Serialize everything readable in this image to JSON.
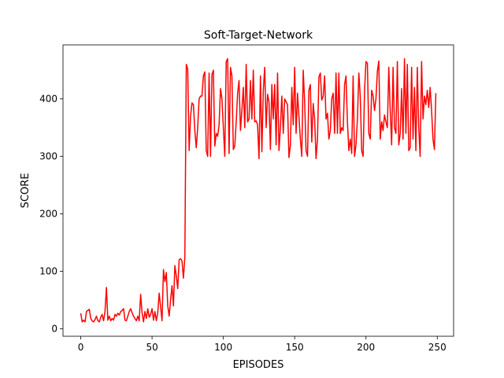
{
  "chart_data": {
    "type": "line",
    "title": "Soft-Target-Network",
    "xlabel": "EPISODES",
    "ylabel": "SCORE",
    "x": [
      0,
      1,
      2,
      3,
      4,
      5,
      6,
      7,
      8,
      9,
      10,
      11,
      12,
      13,
      14,
      15,
      16,
      17,
      18,
      19,
      20,
      21,
      22,
      23,
      24,
      25,
      26,
      27,
      28,
      29,
      30,
      31,
      32,
      33,
      34,
      35,
      36,
      37,
      38,
      39,
      40,
      41,
      42,
      43,
      44,
      45,
      46,
      47,
      48,
      49,
      50,
      51,
      52,
      53,
      54,
      55,
      56,
      57,
      58,
      59,
      60,
      61,
      62,
      63,
      64,
      65,
      66,
      67,
      68,
      69,
      70,
      71,
      72,
      73,
      74,
      75,
      76,
      77,
      78,
      79,
      80,
      81,
      82,
      83,
      84,
      85,
      86,
      87,
      88,
      89,
      90,
      91,
      92,
      93,
      94,
      95,
      96,
      97,
      98,
      99,
      100,
      101,
      102,
      103,
      104,
      105,
      106,
      107,
      108,
      109,
      110,
      111,
      112,
      113,
      114,
      115,
      116,
      117,
      118,
      119,
      120,
      121,
      122,
      123,
      124,
      125,
      126,
      127,
      128,
      129,
      130,
      131,
      132,
      133,
      134,
      135,
      136,
      137,
      138,
      139,
      140,
      141,
      142,
      143,
      144,
      145,
      146,
      147,
      148,
      149,
      150,
      151,
      152,
      153,
      154,
      155,
      156,
      157,
      158,
      159,
      160,
      161,
      162,
      163,
      164,
      165,
      166,
      167,
      168,
      169,
      170,
      171,
      172,
      173,
      174,
      175,
      176,
      177,
      178,
      179,
      180,
      181,
      182,
      183,
      184,
      185,
      186,
      187,
      188,
      189,
      190,
      191,
      192,
      193,
      194,
      195,
      196,
      197,
      198,
      199,
      200,
      201,
      202,
      203,
      204,
      205,
      206,
      207,
      208,
      209,
      210,
      211,
      212,
      213,
      214,
      215,
      216,
      217,
      218,
      219,
      220,
      221,
      222,
      223,
      224,
      225,
      226,
      227,
      228,
      229,
      230,
      231,
      232,
      233,
      234,
      235,
      236,
      237,
      238,
      239,
      240,
      241,
      242,
      243,
      244,
      245,
      246,
      247,
      248,
      249
    ],
    "values": [
      27,
      12,
      15,
      12,
      30,
      32,
      34,
      18,
      14,
      12,
      16,
      22,
      14,
      12,
      20,
      25,
      14,
      30,
      72,
      15,
      22,
      14,
      18,
      15,
      25,
      22,
      27,
      24,
      30,
      32,
      35,
      15,
      14,
      22,
      30,
      35,
      28,
      22,
      18,
      14,
      22,
      14,
      60,
      28,
      12,
      30,
      18,
      35,
      20,
      25,
      35,
      15,
      30,
      14,
      28,
      62,
      38,
      14,
      103,
      82,
      98,
      40,
      22,
      50,
      75,
      40,
      110,
      92,
      70,
      120,
      122,
      118,
      88,
      125,
      460,
      452,
      310,
      370,
      393,
      390,
      345,
      315,
      350,
      400,
      405,
      405,
      440,
      447,
      310,
      300,
      445,
      300,
      442,
      450,
      318,
      340,
      335,
      355,
      418,
      400,
      350,
      300,
      465,
      470,
      305,
      455,
      440,
      312,
      318,
      360,
      410,
      432,
      345,
      380,
      420,
      350,
      460,
      360,
      365,
      432,
      365,
      450,
      360,
      362,
      355,
      296,
      440,
      308,
      415,
      455,
      350,
      408,
      395,
      312,
      425,
      365,
      425,
      320,
      445,
      310,
      350,
      405,
      340,
      400,
      395,
      390,
      298,
      320,
      420,
      355,
      455,
      340,
      410,
      370,
      330,
      300,
      450,
      395,
      310,
      300,
      415,
      425,
      325,
      392,
      365,
      296,
      330,
      438,
      445,
      398,
      405,
      440,
      365,
      375,
      330,
      345,
      400,
      410,
      340,
      445,
      340,
      445,
      340,
      350,
      345,
      425,
      440,
      360,
      310,
      330,
      305,
      440,
      300,
      320,
      365,
      445,
      405,
      310,
      300,
      415,
      465,
      462,
      340,
      330,
      415,
      405,
      380,
      400,
      448,
      466,
      330,
      360,
      345,
      372,
      360,
      350,
      455,
      380,
      320,
      455,
      350,
      340,
      465,
      320,
      340,
      418,
      330,
      470,
      340,
      460,
      310,
      315,
      455,
      330,
      420,
      310,
      455,
      350,
      300,
      465,
      365,
      405,
      390,
      415,
      385,
      420,
      380,
      330,
      312,
      410
    ],
    "color": "#ff0000",
    "xlim": [
      -12.45,
      261.45
    ],
    "ylim": [
      -13,
      494
    ],
    "xticks": [
      0,
      50,
      100,
      150,
      200,
      250
    ],
    "yticks": [
      0,
      100,
      200,
      300,
      400
    ],
    "grid": false
  }
}
